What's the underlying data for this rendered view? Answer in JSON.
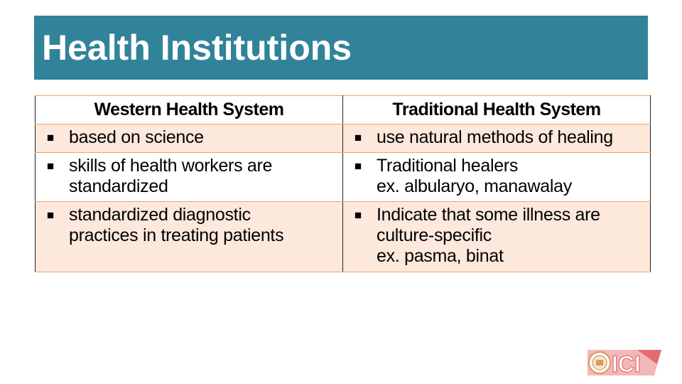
{
  "slide": {
    "title": "Health Institutions"
  },
  "table": {
    "headers": [
      "Western Health System",
      "Traditional Health System"
    ],
    "bullet_glyph": "■",
    "rows": [
      {
        "western": {
          "lines": [
            "based on science"
          ]
        },
        "traditional": {
          "lines": [
            "use natural methods of healing"
          ]
        }
      },
      {
        "western": {
          "lines": [
            "skills of health workers are",
            "standardized"
          ]
        },
        "traditional": {
          "lines": [
            "Traditional healers",
            "ex. albularyo, manawalay"
          ]
        }
      },
      {
        "western": {
          "lines": [
            "standardized diagnostic",
            "practices in treating patients"
          ]
        },
        "traditional": {
          "lines": [
            "Indicate that some illness are",
            "culture-specific",
            "ex. pasma, binat"
          ]
        }
      }
    ]
  },
  "logo": {
    "text": "ICI",
    "colors": {
      "red": "#e46b70",
      "pink": "#f2b8ba",
      "seal": "#d99a5b"
    }
  },
  "colors": {
    "title_bar": "#318399",
    "row_shade": "#fde8dc",
    "row_border": "#f4a460"
  }
}
